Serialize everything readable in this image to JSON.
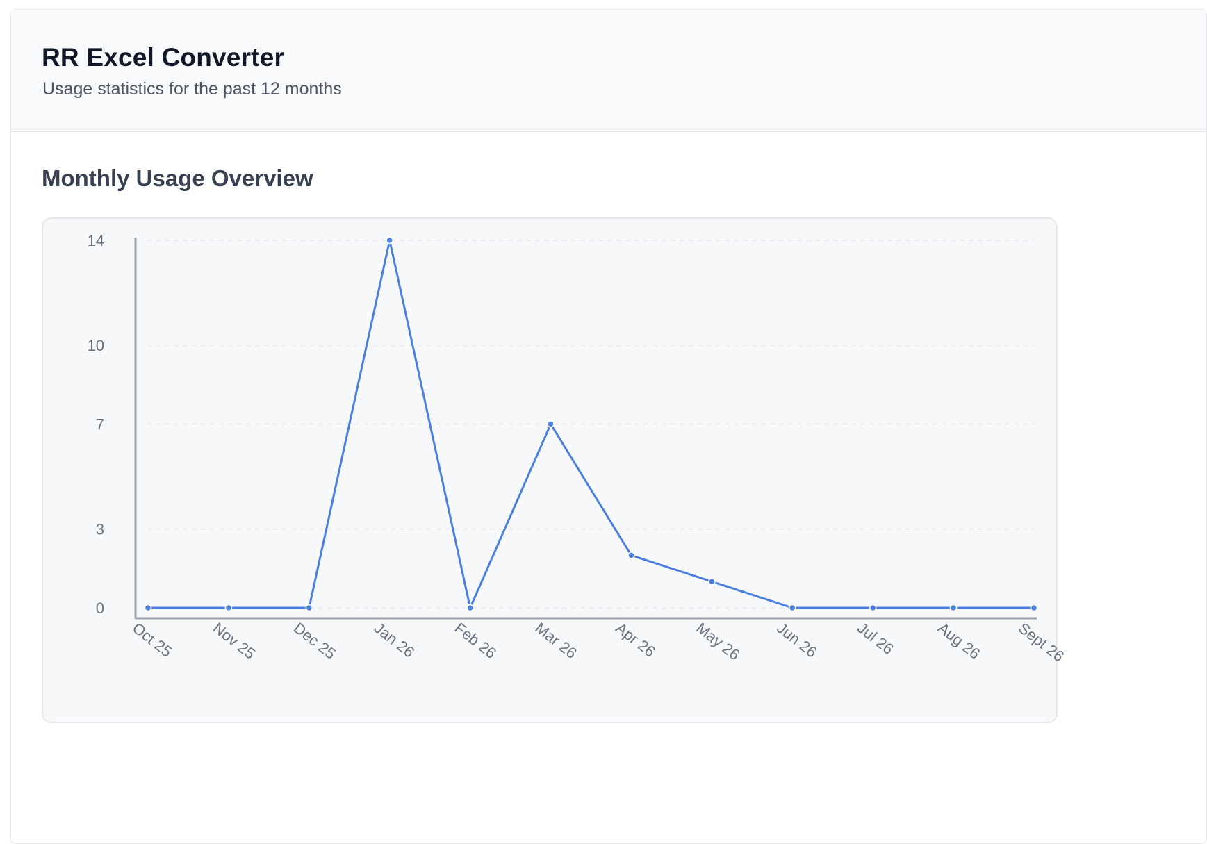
{
  "header": {
    "title": "RR Excel Converter",
    "subtitle": "Usage statistics for the past 12 months"
  },
  "section": {
    "title": "Monthly Usage Overview"
  },
  "colors": {
    "line": "#4a7fe0",
    "axis": "#9ca3af",
    "grid": "#e5e7eb"
  },
  "chart_data": {
    "type": "line",
    "title": "",
    "xlabel": "",
    "ylabel": "",
    "categories": [
      "Oct 25",
      "Nov 25",
      "Dec 25",
      "Jan 26",
      "Feb 26",
      "Mar 26",
      "Apr 26",
      "May 26",
      "Jun 26",
      "Jul 26",
      "Aug 26",
      "Sept 26"
    ],
    "series": [
      {
        "values": [
          0,
          0,
          0,
          14,
          0,
          7,
          2,
          1,
          0,
          0,
          0,
          0
        ]
      }
    ],
    "yticks": [
      0,
      3,
      7,
      10,
      14
    ],
    "ylim": [
      0,
      14
    ],
    "grid": true,
    "legend": "none"
  }
}
